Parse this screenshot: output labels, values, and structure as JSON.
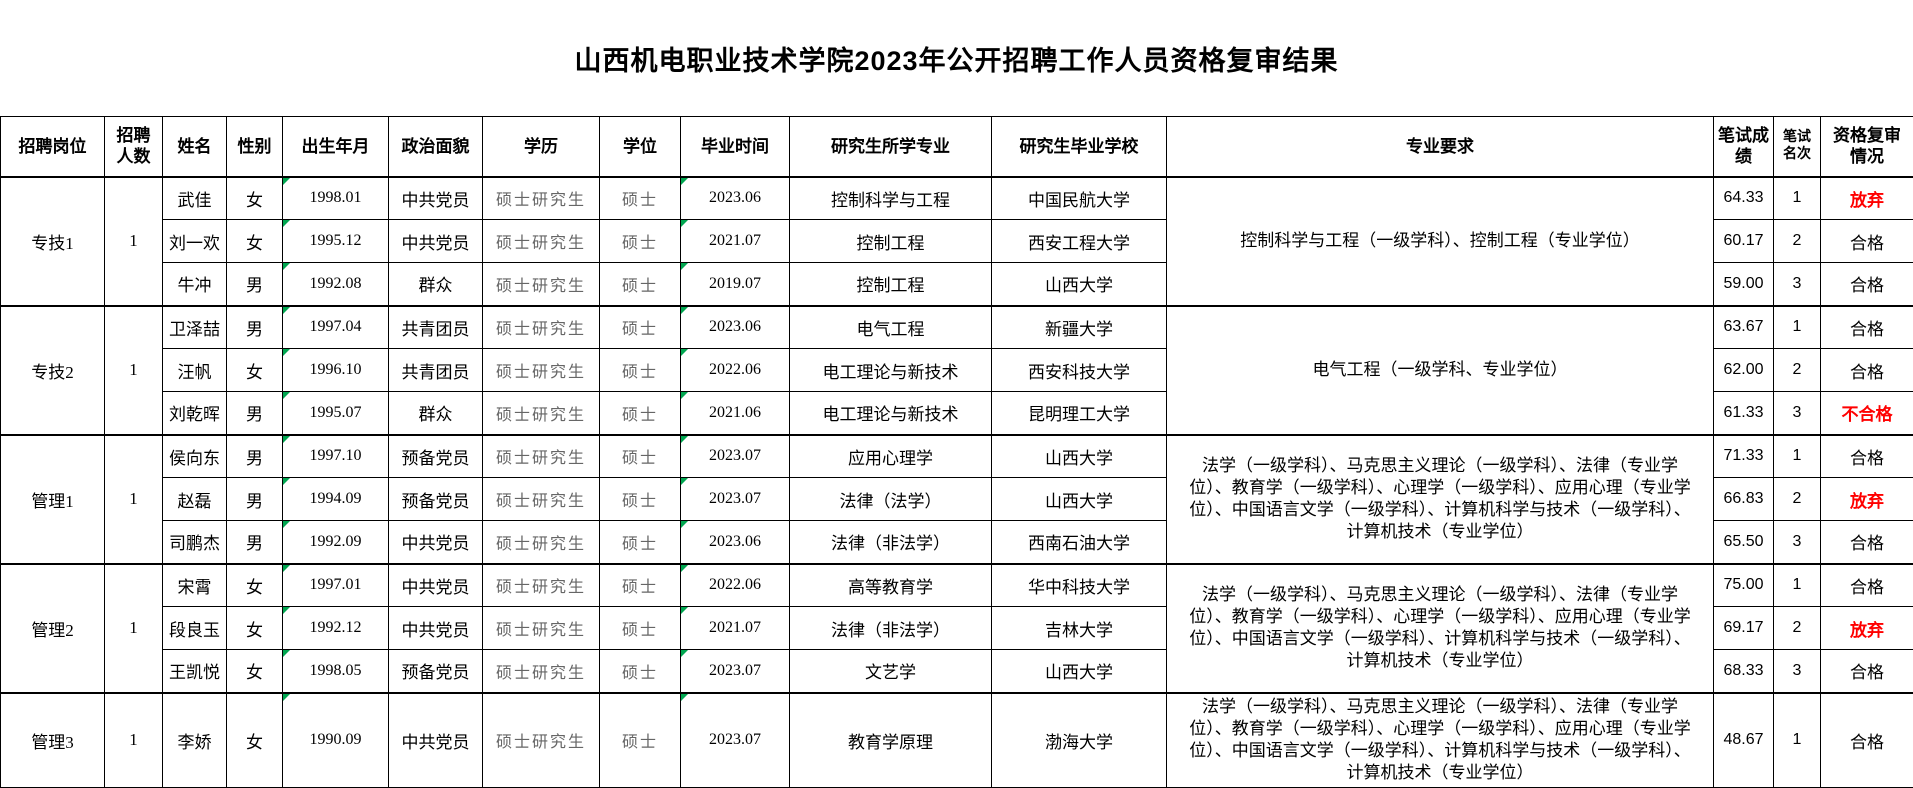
{
  "title": "山西机电职业技术学院2023年公开招聘工作人员资格复审结果",
  "colors": {
    "alert_red": "#FF0000",
    "marker_green": "#00A650"
  },
  "table": {
    "headers": [
      {
        "key": "position",
        "label": "招聘岗位"
      },
      {
        "key": "openings",
        "label": "招聘人数"
      },
      {
        "key": "name",
        "label": "姓名"
      },
      {
        "key": "gender",
        "label": "性别"
      },
      {
        "key": "birth",
        "label": "出生年月"
      },
      {
        "key": "political",
        "label": "政治面貌"
      },
      {
        "key": "education",
        "label": "学历"
      },
      {
        "key": "degree",
        "label": "学位"
      },
      {
        "key": "grad_time",
        "label": "毕业时间"
      },
      {
        "key": "major",
        "label": "研究生所学专业"
      },
      {
        "key": "school",
        "label": "研究生毕业学校"
      },
      {
        "key": "requirement",
        "label": "专业要求"
      },
      {
        "key": "score",
        "label": "笔试成绩"
      },
      {
        "key": "rank",
        "label": "笔试名次"
      },
      {
        "key": "review",
        "label": "资格复审情况"
      }
    ],
    "groups": [
      {
        "position": "专技1",
        "openings": "1",
        "requirement": "控制科学与工程（一级学科）、控制工程（专业学位）",
        "candidates": [
          {
            "name": "武佳",
            "gender": "女",
            "birth": "1998.01",
            "political": "中共党员",
            "education": "硕士研究生",
            "degree": "硕士",
            "grad_time": "2023.06",
            "major": "控制科学与工程",
            "school": "中国民航大学",
            "score": "64.33",
            "rank": "1",
            "review": "放弃",
            "review_red": true
          },
          {
            "name": "刘一欢",
            "gender": "女",
            "birth": "1995.12",
            "political": "中共党员",
            "education": "硕士研究生",
            "degree": "硕士",
            "grad_time": "2021.07",
            "major": "控制工程",
            "school": "西安工程大学",
            "score": "60.17",
            "rank": "2",
            "review": "合格",
            "review_red": false
          },
          {
            "name": "牛冲",
            "gender": "男",
            "birth": "1992.08",
            "political": "群众",
            "education": "硕士研究生",
            "degree": "硕士",
            "grad_time": "2019.07",
            "major": "控制工程",
            "school": "山西大学",
            "score": "59.00",
            "rank": "3",
            "review": "合格",
            "review_red": false
          }
        ]
      },
      {
        "position": "专技2",
        "openings": "1",
        "requirement": "电气工程（一级学科、专业学位）",
        "candidates": [
          {
            "name": "卫泽喆",
            "gender": "男",
            "birth": "1997.04",
            "political": "共青团员",
            "education": "硕士研究生",
            "degree": "硕士",
            "grad_time": "2023.06",
            "major": "电气工程",
            "school": "新疆大学",
            "score": "63.67",
            "rank": "1",
            "review": "合格",
            "review_red": false
          },
          {
            "name": "汪帆",
            "gender": "女",
            "birth": "1996.10",
            "political": "共青团员",
            "education": "硕士研究生",
            "degree": "硕士",
            "grad_time": "2022.06",
            "major": "电工理论与新技术",
            "school": "西安科技大学",
            "score": "62.00",
            "rank": "2",
            "review": "合格",
            "review_red": false
          },
          {
            "name": "刘乾晖",
            "gender": "男",
            "birth": "1995.07",
            "political": "群众",
            "education": "硕士研究生",
            "degree": "硕士",
            "grad_time": "2021.06",
            "major": "电工理论与新技术",
            "school": "昆明理工大学",
            "score": "61.33",
            "rank": "3",
            "review": "不合格",
            "review_red": true
          }
        ]
      },
      {
        "position": "管理1",
        "openings": "1",
        "requirement": "法学（一级学科）、马克思主义理论（一级学科）、法律（专业学位）、教育学（一级学科）、心理学（一级学科）、应用心理（专业学位）、中国语言文学（一级学科）、计算机科学与技术（一级学科）、计算机技术（专业学位）",
        "candidates": [
          {
            "name": "侯向东",
            "gender": "男",
            "birth": "1997.10",
            "political": "预备党员",
            "education": "硕士研究生",
            "degree": "硕士",
            "grad_time": "2023.07",
            "major": "应用心理学",
            "school": "山西大学",
            "score": "71.33",
            "rank": "1",
            "review": "合格",
            "review_red": false
          },
          {
            "name": "赵磊",
            "gender": "男",
            "birth": "1994.09",
            "political": "预备党员",
            "education": "硕士研究生",
            "degree": "硕士",
            "grad_time": "2023.07",
            "major": "法律（法学）",
            "school": "山西大学",
            "score": "66.83",
            "rank": "2",
            "review": "放弃",
            "review_red": true
          },
          {
            "name": "司鹏杰",
            "gender": "男",
            "birth": "1992.09",
            "political": "中共党员",
            "education": "硕士研究生",
            "degree": "硕士",
            "grad_time": "2023.06",
            "major": "法律（非法学）",
            "school": "西南石油大学",
            "score": "65.50",
            "rank": "3",
            "review": "合格",
            "review_red": false
          }
        ]
      },
      {
        "position": "管理2",
        "openings": "1",
        "requirement": "法学（一级学科）、马克思主义理论（一级学科）、法律（专业学位）、教育学（一级学科）、心理学（一级学科）、应用心理（专业学位）、中国语言文学（一级学科）、计算机科学与技术（一级学科）、计算机技术（专业学位）",
        "candidates": [
          {
            "name": "宋霄",
            "gender": "女",
            "birth": "1997.01",
            "political": "中共党员",
            "education": "硕士研究生",
            "degree": "硕士",
            "grad_time": "2022.06",
            "major": "高等教育学",
            "school": "华中科技大学",
            "score": "75.00",
            "rank": "1",
            "review": "合格",
            "review_red": false
          },
          {
            "name": "段良玉",
            "gender": "女",
            "birth": "1992.12",
            "political": "中共党员",
            "education": "硕士研究生",
            "degree": "硕士",
            "grad_time": "2021.07",
            "major": "法律（非法学）",
            "school": "吉林大学",
            "score": "69.17",
            "rank": "2",
            "review": "放弃",
            "review_red": true
          },
          {
            "name": "王凯悦",
            "gender": "女",
            "birth": "1998.05",
            "political": "预备党员",
            "education": "硕士研究生",
            "degree": "硕士",
            "grad_time": "2023.07",
            "major": "文艺学",
            "school": "山西大学",
            "score": "68.33",
            "rank": "3",
            "review": "合格",
            "review_red": false
          }
        ]
      },
      {
        "position": "管理3",
        "openings": "1",
        "requirement": "法学（一级学科）、马克思主义理论（一级学科）、法律（专业学位）、教育学（一级学科）、心理学（一级学科）、应用心理（专业学位）、中国语言文学（一级学科）、计算机科学与技术（一级学科）、计算机技术（专业学位）",
        "candidates": [
          {
            "name": "李娇",
            "gender": "女",
            "birth": "1990.09",
            "political": "中共党员",
            "education": "硕士研究生",
            "degree": "硕士",
            "grad_time": "2023.07",
            "major": "教育学原理",
            "school": "渤海大学",
            "score": "48.67",
            "rank": "1",
            "review": "合格",
            "review_red": false
          }
        ]
      }
    ]
  }
}
